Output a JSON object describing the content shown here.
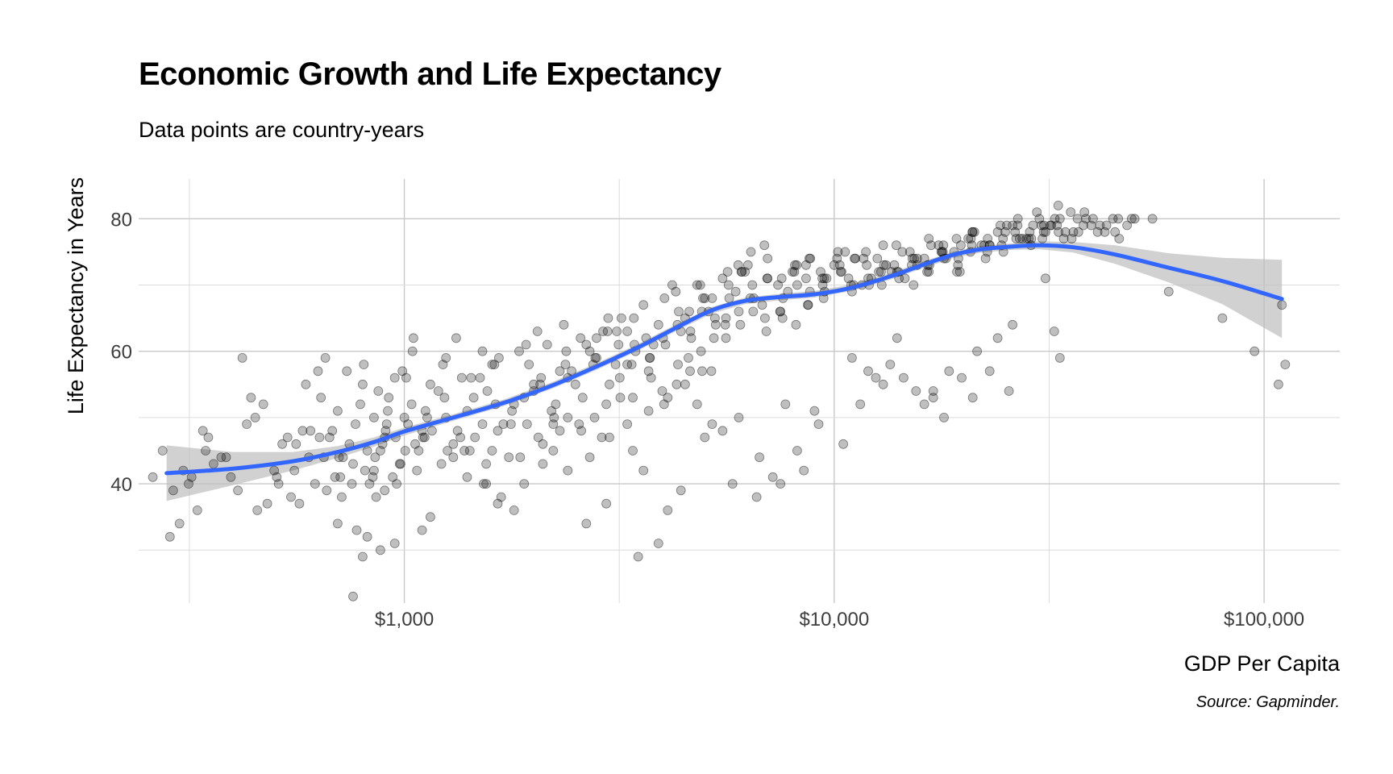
{
  "chart_data": {
    "type": "scatter",
    "title": "Economic Growth and Life Expectancy",
    "subtitle": "Data points are country-years",
    "xlabel": "GDP Per Capita",
    "ylabel": "Life Expectancy in Years",
    "caption": "Source: Gapminder.",
    "x_scale": "log10",
    "xlim": [
      241,
      150000
    ],
    "ylim": [
      22,
      86
    ],
    "x_ticks": [
      {
        "value": 1000,
        "label": "$1,000"
      },
      {
        "value": 10000,
        "label": "$10,000"
      },
      {
        "value": 100000,
        "label": "$100,000"
      }
    ],
    "x_minor_gridlines": [
      316.2,
      3162.3,
      31622.8
    ],
    "y_ticks": [
      {
        "value": 40,
        "label": "40"
      },
      {
        "value": 60,
        "label": "60"
      },
      {
        "value": 80,
        "label": "80"
      }
    ],
    "y_minor_gridlines": [
      30,
      50,
      70
    ],
    "grid": true,
    "legend": "none",
    "point_color": "#000000",
    "point_opacity": 0.25,
    "smooth_color": "#3366FF",
    "ribbon_color": "#BEBEBE",
    "series": [
      {
        "kind": "points",
        "x": [
          274,
          306,
          340,
          375,
          420,
          450,
          498,
          535,
          560,
          600,
          640,
          660,
          700,
          745,
          760,
          800,
          860,
          900,
          950,
          1000,
          1040,
          1100,
          1200,
          1300,
          1400,
          1500,
          1600,
          1700,
          1850,
          2000,
          2150,
          2300,
          2500,
          2700,
          2900,
          3100,
          3300,
          3600,
          3900,
          4200,
          4500,
          4800,
          5100,
          5500,
          5900,
          6300,
          6800,
          7400,
          8000,
          8600,
          9300,
          10000,
          10800,
          11700,
          12700,
          13800,
          15000,
          16200,
          17500,
          19000,
          20500,
          22000,
          24000,
          26000,
          28000,
          30000,
          32000,
          34500,
          37000,
          40000,
          43000,
          46000,
          50000,
          320,
          360,
          410,
          480,
          520,
          580,
          620,
          680,
          720,
          790,
          830,
          880,
          920,
          980,
          1020,
          1080,
          1150,
          1250,
          1350,
          1450,
          1550,
          1650,
          1800,
          1950,
          2100,
          2250,
          2400,
          2600,
          2800,
          3000,
          3200,
          3450,
          3750,
          4050,
          4350,
          4650,
          4950,
          5300,
          5700,
          6100,
          6500,
          7000,
          7600,
          8200,
          8800,
          9500,
          10400,
          11200,
          12200,
          13200,
          14400,
          15600,
          16800,
          18200,
          19700,
          21200,
          23000,
          25000,
          27000,
          29000,
          31000,
          33500,
          36000,
          38500,
          41500,
          44500,
          48000,
          300,
          350,
          430,
          470,
          545,
          590,
          650,
          690,
          735,
          810,
          850,
          890,
          940,
          990,
          1060,
          1120,
          1220,
          1320,
          1420,
          1520,
          1620,
          1750,
          1900,
          2050,
          2200,
          2350,
          2550,
          2750,
          2950,
          3150,
          3400,
          3700,
          4000,
          4300,
          4600,
          4900,
          5200,
          5600,
          6000,
          6400,
          6900,
          7500,
          8100,
          8700,
          9400,
          10200,
          11000,
          11900,
          12900,
          14000,
          15200,
          16500,
          17800,
          19300,
          20800,
          22500,
          24500,
          26500,
          28500,
          30500,
          33000,
          35500,
          38000,
          41000,
          290,
          330,
          385,
          440,
          510,
          570,
          630,
          670,
          710,
          770,
          820,
          870,
          910,
          960,
          1010,
          1070,
          1130,
          1230,
          1330,
          1430,
          1530,
          1630,
          1770,
          1920,
          2070,
          2220,
          2370,
          2570,
          2770,
          2970,
          3170,
          3420,
          3720,
          4020,
          4320,
          4620,
          4920,
          5250,
          5650,
          6050,
          6450,
          6950,
          7550,
          8150,
          8750,
          9450,
          10300,
          11100,
          12000,
          13000,
          14100,
          15300,
          16600,
          17900,
          19400,
          20900,
          22700,
          24700,
          26700,
          28700,
          30700,
          33200,
          35700,
          38200,
          345,
          395,
          455,
          505,
          555,
          605,
          655,
          705,
          755,
          805,
          855,
          905,
          955,
          1005,
          1050,
          1105,
          1160,
          1260,
          1360,
          1460,
          1560,
          1660,
          1780,
          1930,
          2080,
          2230,
          2380,
          2580,
          2780,
          2980,
          3180,
          3430,
          3730,
          4030,
          4330,
          4630,
          4930,
          5280,
          5680,
          6080,
          6480,
          6980,
          7580,
          8180,
          8780,
          9480,
          10350,
          11150,
          12050,
          13050,
          14150,
          15350,
          16650,
          17950,
          19450,
          20950,
          22750,
          24750,
          26750,
          28750,
          30750,
          33250,
          635,
          715,
          775,
          845,
          915,
          975,
          1045,
          1115,
          1240,
          1380,
          1520,
          1680,
          1860,
          2040,
          2220,
          2450,
          2650,
          2880,
          3120,
          3380,
          3650,
          3980,
          4280,
          4580,
          4880,
          5180,
          5580,
          5980,
          6380,
          6880,
          7480,
          8080,
          8680,
          9380,
          10150,
          10950,
          11850,
          12850,
          13950,
          15150,
          16450,
          17750,
          19250,
          20750,
          22350,
          24350,
          26350,
          28350,
          30350,
          32600,
          850,
          1250,
          1600,
          2000,
          2400,
          2800,
          3300,
          3800,
          4400,
          5000,
          5600,
          6200,
          7000,
          7800,
          8600,
          9600,
          10600,
          11600,
          12600,
          13600,
          14600,
          15600,
          16600,
          18000,
          19600,
          21000,
          23000,
          25200,
          27400,
          29600,
          31800,
          34200,
          36800,
          39600,
          42600,
          45800,
          49200,
          260,
          285,
          315,
          5200,
          5800,
          6600,
          7200,
          3500,
          4100,
          3900,
          4800,
          3600,
          3400,
          1900,
          2300,
          2650,
          2950,
          1650,
          1400,
          1150,
          950,
          800,
          880,
          760,
          700,
          820,
          900,
          1100,
          1300,
          1550,
          1800,
          2100,
          2400,
          2700,
          3000,
          3300,
          3700,
          4100,
          4500,
          5000,
          5500,
          6000,
          7500,
          8500,
          9000,
          10500,
          11500,
          12500,
          13500,
          14500,
          15500,
          16200,
          17000,
          18500,
          19800,
          21500,
          24000,
          26000,
          31000,
          32500,
          33500,
          45000,
          60000,
          80000,
          95000,
          108000,
          112000,
          110000,
          55000,
          21000,
          23000,
          25500,
          12000,
          13000,
          14000,
          18000,
          17000,
          11000,
          9200,
          8200,
          7700,
          6700,
          4400
        ],
        "y": [
          45,
          42,
          48,
          44,
          59,
          50,
          42,
          47,
          46,
          44,
          53,
          39,
          51,
          46,
          43,
          55,
          38,
          47,
          56,
          50,
          52,
          48,
          54,
          46,
          51,
          56,
          58,
          49,
          60,
          55,
          61,
          57,
          55,
          60,
          63,
          58,
          63,
          67,
          64,
          70,
          65,
          70,
          66,
          71,
          69,
          73,
          67,
          70,
          72,
          71,
          72,
          73,
          71,
          74,
          72,
          73,
          75,
          74,
          76,
          75,
          77,
          76,
          78,
          79,
          77,
          80,
          79,
          78,
          78,
          80,
          79,
          77,
          80,
          41,
          43,
          39,
          37,
          46,
          48,
          40,
          48,
          44,
          52,
          40,
          45,
          53,
          43,
          49,
          45,
          55,
          50,
          47,
          53,
          43,
          48,
          52,
          58,
          46,
          52,
          56,
          53,
          59,
          55,
          65,
          60,
          56,
          61,
          66,
          62,
          68,
          64,
          68,
          72,
          68,
          71,
          68,
          70,
          74,
          69,
          72,
          74,
          71,
          73,
          75,
          74,
          76,
          74,
          76,
          78,
          76,
          78,
          77,
          79,
          78,
          80,
          78,
          80,
          79,
          80,
          79,
          34,
          47,
          49,
          52,
          38,
          55,
          44,
          41,
          57,
          42,
          50,
          46,
          41,
          57,
          46,
          51,
          43,
          62,
          45,
          49,
          58,
          44,
          53,
          47,
          51,
          64,
          49,
          58,
          52,
          61,
          53,
          57,
          62,
          55,
          66,
          60,
          68,
          62,
          66,
          75,
          65,
          66,
          73,
          67,
          70,
          75,
          69,
          73,
          70,
          72,
          74,
          73,
          75,
          72,
          77,
          74,
          76,
          77,
          78,
          77,
          79,
          81,
          79,
          78,
          39,
          36,
          44,
          53,
          40,
          37,
          57,
          47,
          41,
          49,
          45,
          54,
          49,
          40,
          56,
          42,
          50,
          58,
          48,
          56,
          40,
          52,
          49,
          61,
          55,
          45,
          58,
          62,
          50,
          63,
          56,
          65,
          59,
          52,
          64,
          57,
          66,
          62,
          72,
          64,
          70,
          63,
          71,
          64,
          74,
          68,
          73,
          70,
          71,
          76,
          72,
          70,
          72,
          75,
          73,
          76,
          75,
          77,
          79,
          76,
          78,
          82,
          77,
          81,
          45,
          41,
          36,
          41,
          42,
          48,
          59,
          44,
          40,
          58,
          44,
          48,
          47,
          45,
          62,
          47,
          48,
          45,
          56,
          47,
          54,
          59,
          51,
          49,
          56,
          50,
          60,
          48,
          59,
          65,
          53,
          61,
          59,
          68,
          58,
          63,
          57,
          65,
          70,
          72,
          66,
          71,
          65,
          73,
          69,
          71,
          72,
          74,
          70,
          73,
          71,
          74,
          73,
          76,
          74,
          78,
          77,
          75,
          80,
          77,
          79,
          78,
          47,
          38,
          33,
          41,
          51,
          43,
          60,
          47,
          53,
          45,
          60,
          38,
          44,
          63,
          49,
          57,
          61,
          47,
          63,
          58,
          62,
          54,
          69,
          59,
          70,
          57,
          64,
          73,
          68,
          76,
          66,
          72,
          67,
          71,
          74,
          70,
          75,
          72,
          76,
          73,
          72,
          75,
          77,
          75,
          76,
          79,
          78,
          77,
          79,
          80,
          42,
          59,
          45,
          54,
          50,
          62,
          58,
          61,
          63,
          68,
          65,
          72,
          74,
          69,
          73,
          71,
          75,
          70,
          74,
          72,
          71,
          73,
          77,
          74,
          72,
          78,
          76,
          79,
          77,
          81,
          79,
          77,
          80,
          79,
          78,
          80,
          80,
          41,
          32,
          40,
          49,
          40,
          38,
          41,
          29,
          36,
          31,
          52,
          42,
          45,
          40,
          48,
          34,
          37,
          37,
          41,
          35,
          31,
          29,
          30,
          23,
          34,
          32,
          39,
          33,
          44,
          40,
          36,
          43,
          42,
          44,
          47,
          49,
          51,
          53,
          55,
          47,
          48,
          50,
          40,
          42,
          51,
          46,
          52,
          56,
          58,
          56,
          54,
          52,
          54,
          57,
          56,
          60,
          62,
          64,
          71,
          63,
          59,
          78,
          69,
          65,
          60,
          55,
          58,
          67,
          80,
          53,
          57,
          54,
          57,
          55,
          62,
          50,
          53,
          59,
          49,
          45,
          52,
          44,
          39
        ]
      },
      {
        "kind": "smooth",
        "x": [
          280,
          400,
          550,
          700,
          850,
          1000,
          1300,
          1700,
          2200,
          2800,
          3500,
          4300,
          5200,
          6200,
          7500,
          9000,
          11000,
          13500,
          16000,
          19000,
          22000,
          26000,
          30000,
          36000,
          45000,
          60000,
          80000,
          110000
        ],
        "y": [
          41.6,
          42.3,
          43.4,
          44.8,
          46.3,
          47.9,
          50.0,
          52.2,
          54.8,
          57.7,
          60.6,
          63.6,
          66.2,
          67.6,
          68.2,
          68.6,
          69.6,
          71.3,
          73.0,
          74.6,
          75.4,
          75.8,
          76.0,
          75.7,
          74.6,
          72.6,
          70.6,
          67.9
        ],
        "lower": [
          37.4,
          39.8,
          42.0,
          43.9,
          45.6,
          47.3,
          49.5,
          51.7,
          54.3,
          57.2,
          60.1,
          63.1,
          65.7,
          67.1,
          67.7,
          68.1,
          69.1,
          70.8,
          72.5,
          74.1,
          74.9,
          75.3,
          75.4,
          74.9,
          73.2,
          70.4,
          67.1,
          62.0
        ],
        "upper": [
          45.8,
          44.8,
          44.8,
          45.7,
          47.0,
          48.5,
          50.5,
          52.7,
          55.3,
          58.2,
          61.1,
          64.1,
          66.7,
          68.1,
          68.7,
          69.1,
          70.1,
          71.8,
          73.5,
          75.1,
          75.9,
          76.3,
          76.6,
          76.5,
          76.0,
          74.8,
          74.1,
          73.8
        ]
      }
    ]
  }
}
